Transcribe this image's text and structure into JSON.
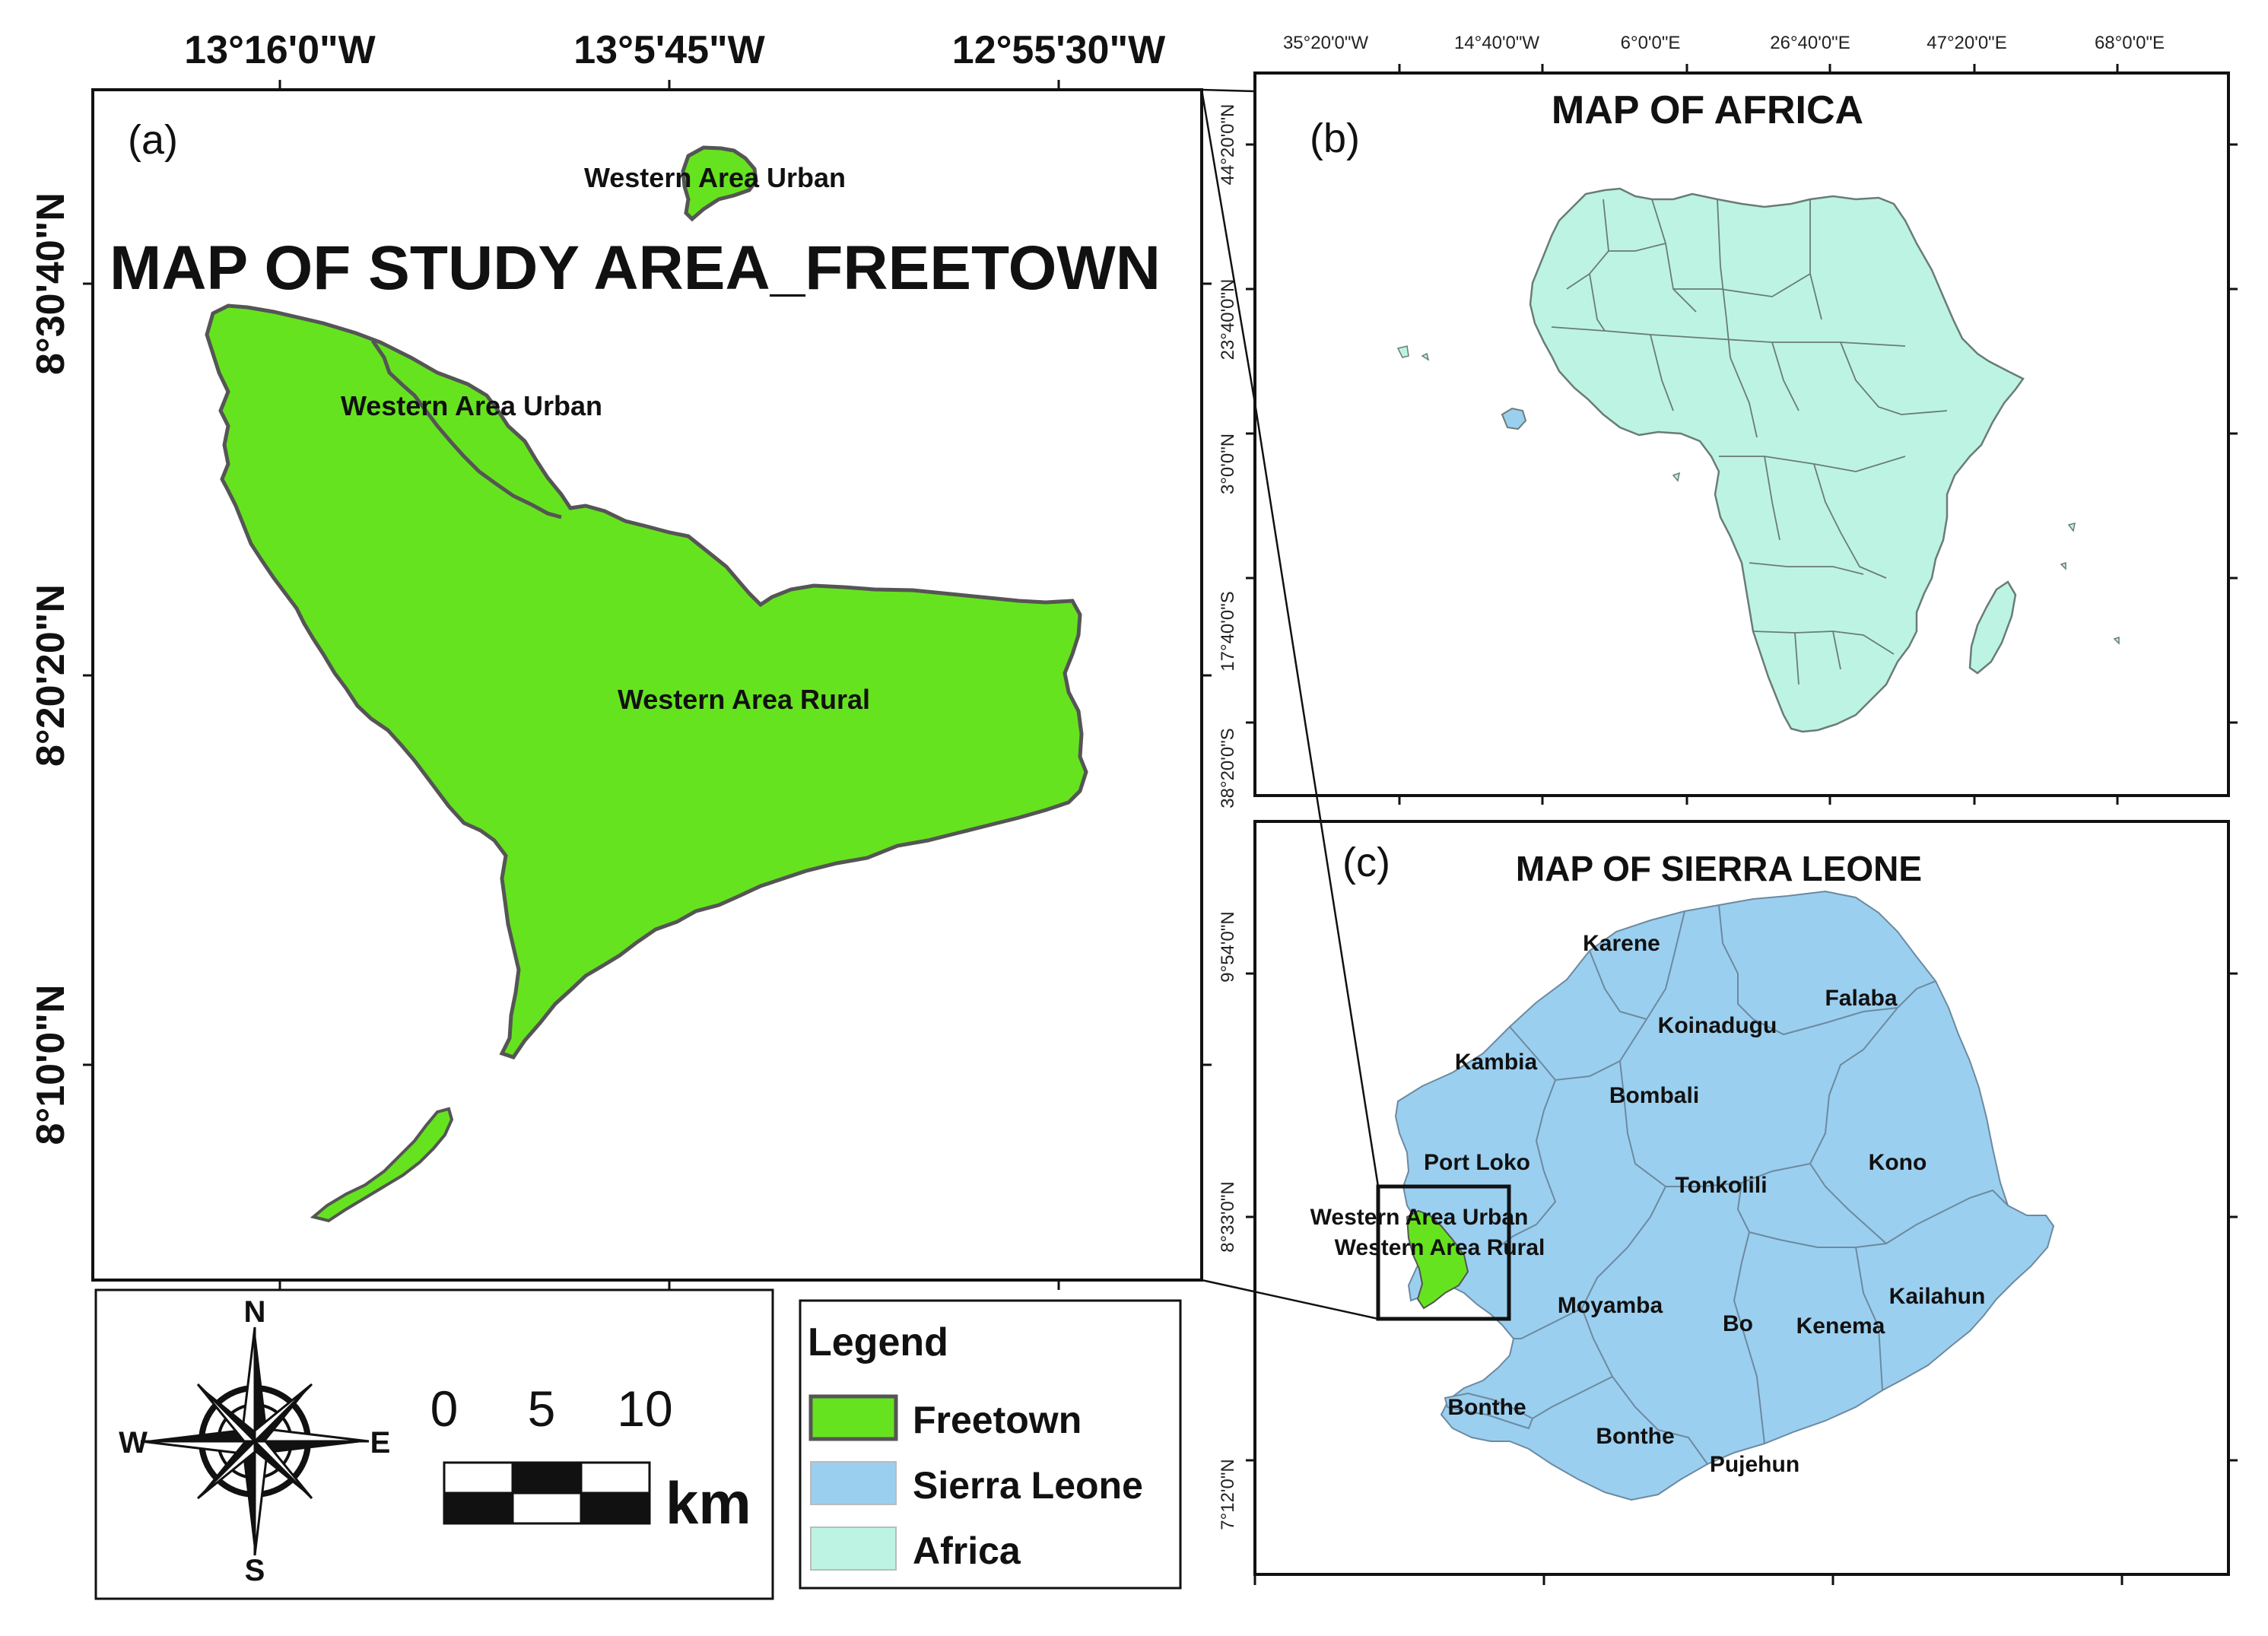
{
  "colors": {
    "freetown": "#66E31F",
    "sierra_leone": "#9BCFEF",
    "africa": "#BDF3E2",
    "outline": "#555555"
  },
  "panel_a": {
    "letter": "(a)",
    "title": "MAP OF STUDY AREA_FREETOWN",
    "top_ticks": [
      "13°16'0\"W",
      "13°5'45\"W",
      "12°55'30\"W"
    ],
    "left_ticks": [
      "8°30'40\"N",
      "8°20'20\"N",
      "8°10'0\"N"
    ],
    "labels": {
      "island_urban": "Western Area Urban",
      "mainland_urban": "Western Area Urban",
      "rural": "Western Area Rural"
    }
  },
  "panel_b": {
    "letter": "(b)",
    "title": "MAP OF AFRICA",
    "top_ticks": [
      "35°20'0\"W",
      "14°40'0\"W",
      "6°0'0\"E",
      "26°40'0\"E",
      "47°20'0\"E",
      "68°0'0\"E"
    ],
    "left_ticks": [
      "44°20'0\"N",
      "23°40'0\"N",
      "3°0'0\"N",
      "17°40'0\"S",
      "38°20'0\"S"
    ]
  },
  "panel_c": {
    "letter": "(c)",
    "title": "MAP OF SIERRA LEONE",
    "left_ticks": [
      "9°54'0\"N",
      "8°33'0\"N",
      "7°12'0\"N"
    ],
    "districts": [
      "Karene",
      "Falaba",
      "Koinadugu",
      "Kambia",
      "Bombali",
      "Port Loko",
      "Kono",
      "Tonkolili",
      "Western Area Urban",
      "Western Area Rural",
      "Moyamba",
      "Kailahun",
      "Bo",
      "Kenema",
      "Bonthe",
      "Bonthe",
      "Pujehun"
    ]
  },
  "compass": {
    "n": "N",
    "s": "S",
    "e": "E",
    "w": "W"
  },
  "scale_bar": {
    "labels": [
      "0",
      "5",
      "10"
    ],
    "unit": "km"
  },
  "legend": {
    "title": "Legend",
    "items": [
      {
        "label": "Freetown",
        "color": "#66E31F"
      },
      {
        "label": "Sierra Leone",
        "color": "#9BCFEF"
      },
      {
        "label": "Africa",
        "color": "#BDF3E2"
      }
    ]
  }
}
